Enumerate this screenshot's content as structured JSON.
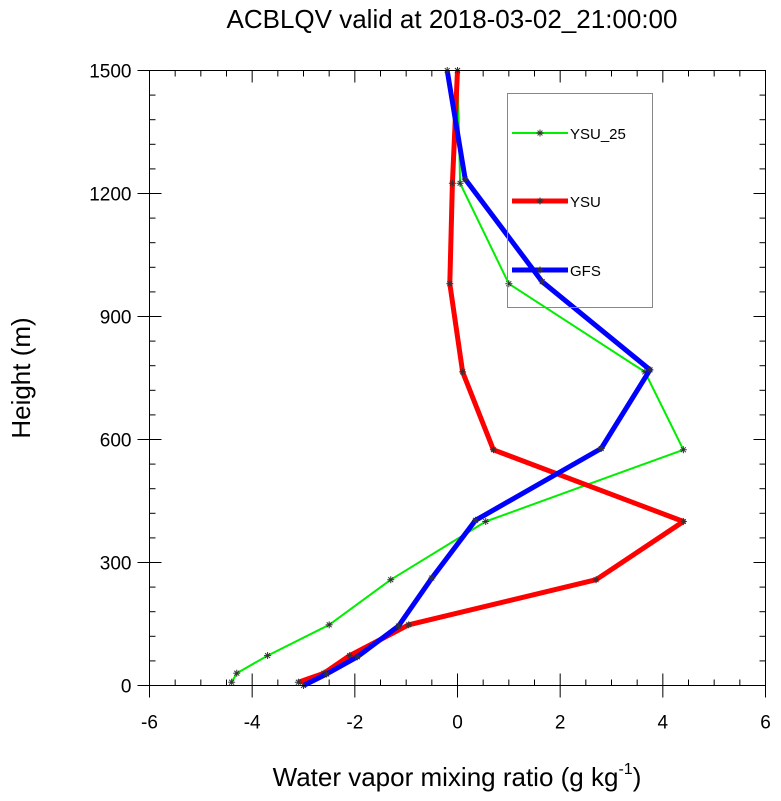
{
  "chart_data": {
    "type": "line",
    "title": "ACBLQV valid at 2018-03-02_21:00:00",
    "xlabel": "Water vapor mixing ratio (g kg",
    "xlabel_sup": "-1",
    "xlabel_close": ")",
    "ylabel": "Height (m)",
    "xlim": [
      -6,
      6
    ],
    "ylim": [
      0,
      1500
    ],
    "x_ticks": [
      -6,
      -4,
      -2,
      0,
      2,
      4,
      6
    ],
    "x_tick_labels": [
      "-6",
      "-4",
      "-2",
      "0",
      "2",
      "4",
      "6"
    ],
    "y_ticks": [
      0,
      300,
      600,
      900,
      1200,
      1500
    ],
    "y_tick_labels": [
      "0",
      "300",
      "600",
      "900",
      "1200",
      "1500"
    ],
    "legend_position": "top-right",
    "grid": false,
    "series": [
      {
        "name": "YSU_25",
        "color": "#00ee00",
        "points": [
          [
            -4.4,
            8
          ],
          [
            -4.3,
            30
          ],
          [
            -3.7,
            73
          ],
          [
            -2.5,
            148
          ],
          [
            -1.3,
            258
          ],
          [
            0.55,
            400
          ],
          [
            4.4,
            575
          ],
          [
            3.65,
            765
          ],
          [
            1.0,
            980
          ],
          [
            0.05,
            1225
          ],
          [
            0.0,
            1500
          ]
        ]
      },
      {
        "name": "YSU",
        "color": "#ff0000",
        "points": [
          [
            -3.1,
            8
          ],
          [
            -2.6,
            30
          ],
          [
            -2.1,
            73
          ],
          [
            -0.95,
            148
          ],
          [
            2.7,
            258
          ],
          [
            4.4,
            400
          ],
          [
            0.7,
            575
          ],
          [
            0.1,
            765
          ],
          [
            -0.15,
            980
          ],
          [
            -0.1,
            1225
          ],
          [
            0.0,
            1500
          ]
        ]
      },
      {
        "name": "GFS",
        "color": "#0000ff",
        "points": [
          [
            -3.0,
            0
          ],
          [
            -2.55,
            28
          ],
          [
            -1.95,
            70
          ],
          [
            -1.15,
            145
          ],
          [
            -0.5,
            262
          ],
          [
            0.35,
            403
          ],
          [
            2.8,
            578
          ],
          [
            3.75,
            770
          ],
          [
            1.65,
            985
          ],
          [
            0.15,
            1235
          ],
          [
            -0.2,
            1500
          ]
        ]
      }
    ]
  }
}
